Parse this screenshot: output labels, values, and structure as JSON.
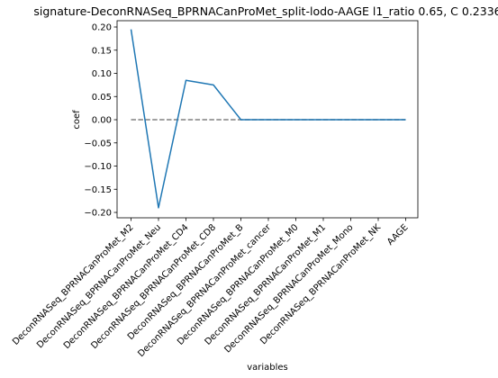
{
  "chart_data": {
    "type": "line",
    "title": "signature-DeconRNASeq_BPRNACanProMet_split-lodo-AAGE l1_ratio 0.65, C 0.2336",
    "xlabel": "variables",
    "ylabel": "coef",
    "categories": [
      "DeconRNASeq_BPRNACanProMet_M2",
      "DeconRNASeq_BPRNACanProMet_Neu",
      "DeconRNASeq_BPRNACanProMet_CD4",
      "DeconRNASeq_BPRNACanProMet_CD8",
      "DeconRNASeq_BPRNACanProMet_B",
      "DeconRNASeq_BPRNACanProMet_cancer",
      "DeconRNASeq_BPRNACanProMet_M0",
      "DeconRNASeq_BPRNACanProMet_M1",
      "DeconRNASeq_BPRNACanProMet_Mono",
      "DeconRNASeq_BPRNACanProMet_NK",
      "AAGE"
    ],
    "series": [
      {
        "values": [
          0.195,
          -0.19,
          0.085,
          0.075,
          0.0,
          0.0,
          0.0,
          0.0,
          0.0,
          0.0,
          0.0
        ],
        "color": "#1f77b4"
      }
    ],
    "reference_line": {
      "y": 0.0,
      "style": "dashed",
      "color": "#808080"
    },
    "yticks": [
      0.2,
      0.15,
      0.1,
      0.05,
      0.0,
      -0.05,
      -0.1,
      -0.15,
      -0.2
    ],
    "ytick_labels": [
      "0.20",
      "0.15",
      "0.10",
      "0.05",
      "0.00",
      "−0.05",
      "−0.10",
      "−0.15",
      "−0.20"
    ],
    "ylim": [
      -0.2116,
      0.2136
    ],
    "grid": false,
    "legend": false
  }
}
